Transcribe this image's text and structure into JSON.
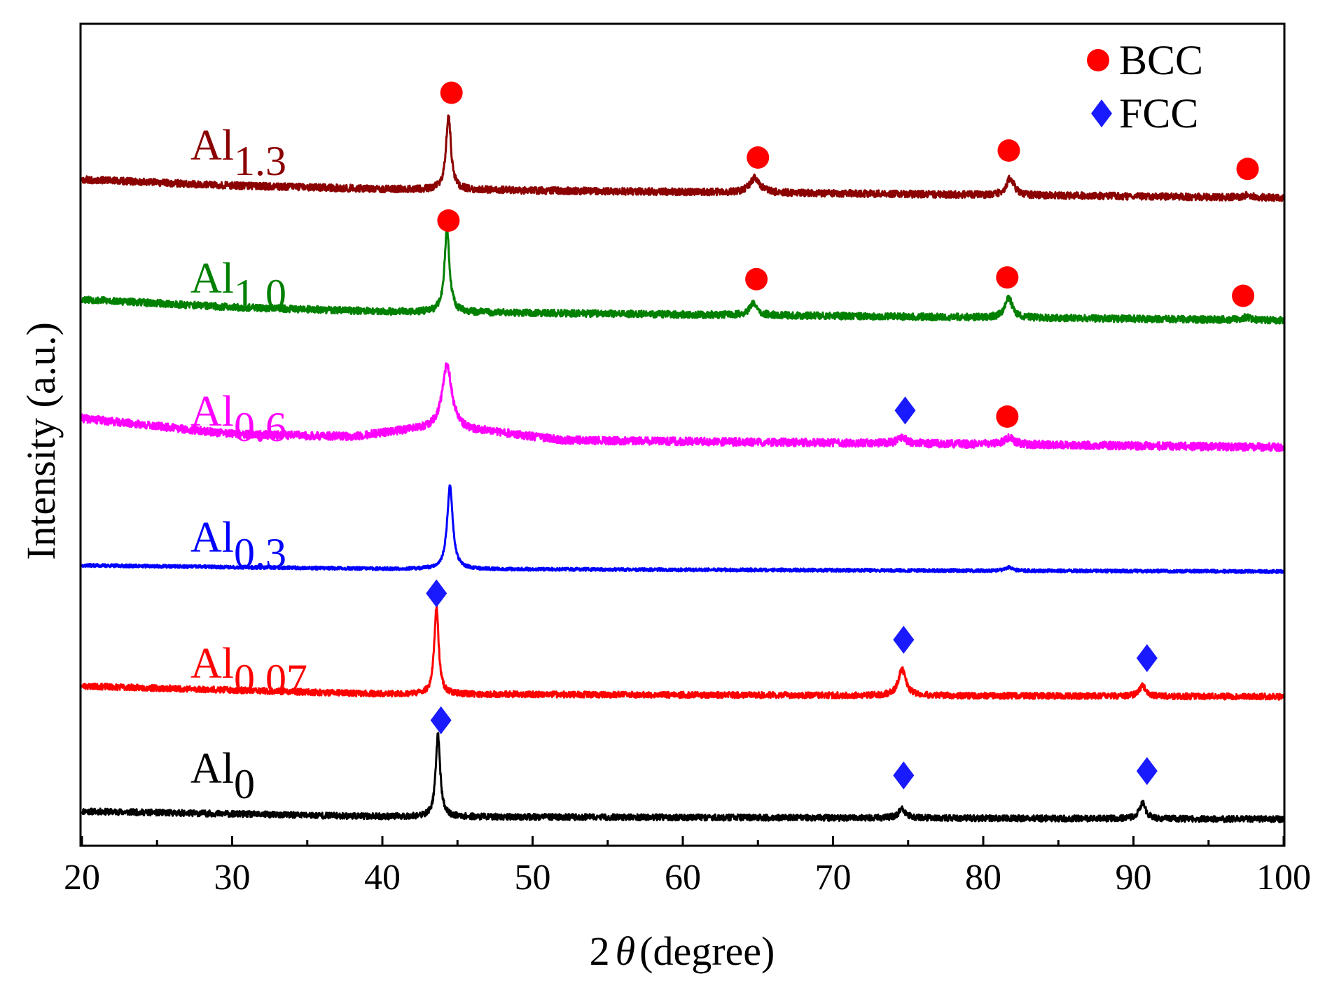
{
  "chart_data": {
    "type": "line",
    "xlabel_prefix": "2",
    "xlabel_symbol": "θ",
    "xlabel_suffix": "(degree)",
    "ylabel": "Intensity (a.u.)",
    "xlim": [
      20,
      100
    ],
    "xticks": [
      20,
      30,
      40,
      50,
      60,
      70,
      80,
      90,
      100
    ],
    "grid": false,
    "legend": {
      "position": "top-right",
      "entries": [
        {
          "label": "BCC",
          "marker": "circle",
          "color": "#ff0000"
        },
        {
          "label": "FCC",
          "marker": "diamond",
          "color": "#1a1aff"
        }
      ]
    },
    "series": [
      {
        "name": "Al0",
        "base": "Al",
        "sub": "0",
        "color": "#000000",
        "baseline": 0,
        "noise": 0.035,
        "noise_seed": 11,
        "bg": [
          [
            20,
            0.09
          ],
          [
            40,
            0.03
          ],
          [
            100,
            0.0
          ]
        ],
        "peaks": [
          {
            "x": 43.7,
            "h": 0.95,
            "w": 0.35
          },
          {
            "x": 74.6,
            "h": 0.1,
            "w": 0.6
          },
          {
            "x": 90.6,
            "h": 0.18,
            "w": 0.5
          }
        ],
        "markers": [
          {
            "x": 43.9,
            "y": 1.13,
            "type": "FCC"
          },
          {
            "x": 74.7,
            "y": 0.5,
            "type": "FCC"
          },
          {
            "x": 90.9,
            "y": 0.55,
            "type": "FCC"
          }
        ]
      },
      {
        "name": "Al0.07",
        "base": "Al",
        "sub": "0.07",
        "color": "#ff0000",
        "baseline": 1.4,
        "noise": 0.035,
        "noise_seed": 23,
        "bg": [
          [
            20,
            0.12
          ],
          [
            40,
            0.03
          ],
          [
            100,
            0.0
          ]
        ],
        "peaks": [
          {
            "x": 43.6,
            "h": 1.0,
            "w": 0.35
          },
          {
            "x": 74.6,
            "h": 0.3,
            "w": 0.6
          },
          {
            "x": 90.6,
            "h": 0.12,
            "w": 0.5
          }
        ],
        "markers": [
          {
            "x": 43.6,
            "y": 1.18,
            "type": "FCC"
          },
          {
            "x": 74.7,
            "y": 0.65,
            "type": "FCC"
          },
          {
            "x": 90.9,
            "y": 0.44,
            "type": "FCC"
          }
        ]
      },
      {
        "name": "Al0.3",
        "base": "Al",
        "sub": "0.3",
        "color": "#0000ff",
        "baseline": 2.83,
        "noise": 0.018,
        "noise_seed": 37,
        "bg": [
          [
            20,
            0.07
          ],
          [
            40,
            0.03
          ],
          [
            100,
            0.0
          ]
        ],
        "peaks": [
          {
            "x": 44.5,
            "h": 0.95,
            "w": 0.45
          },
          {
            "x": 81.7,
            "h": 0.04,
            "w": 0.5
          }
        ],
        "markers": []
      },
      {
        "name": "Al0.6",
        "base": "Al",
        "sub": "0.6",
        "color": "#ff00ff",
        "baseline": 4.25,
        "noise": 0.045,
        "noise_seed": 41,
        "bg": [
          [
            20,
            0.33
          ],
          [
            30,
            0.15
          ],
          [
            38,
            0.12
          ],
          [
            42,
            0.2
          ],
          [
            47,
            0.18
          ],
          [
            52,
            0.08
          ],
          [
            100,
            0.0
          ]
        ],
        "peaks": [
          {
            "x": 44.3,
            "h": 0.75,
            "w": 0.8
          },
          {
            "x": 74.6,
            "h": 0.06,
            "w": 0.8
          },
          {
            "x": 81.7,
            "h": 0.08,
            "w": 0.8
          }
        ],
        "markers": [
          {
            "x": 74.8,
            "y": 0.42,
            "type": "FCC"
          },
          {
            "x": 81.6,
            "y": 0.35,
            "type": "BCC"
          }
        ]
      },
      {
        "name": "Al1.0",
        "base": "Al",
        "sub": "1.0",
        "color": "#008000",
        "baseline": 5.7,
        "noise": 0.04,
        "noise_seed": 53,
        "bg": [
          [
            20,
            0.24
          ],
          [
            30,
            0.15
          ],
          [
            40,
            0.1
          ],
          [
            100,
            0.0
          ]
        ],
        "peaks": [
          {
            "x": 44.3,
            "h": 0.95,
            "w": 0.4
          },
          {
            "x": 64.7,
            "h": 0.14,
            "w": 0.6
          },
          {
            "x": 81.7,
            "h": 0.22,
            "w": 0.6
          },
          {
            "x": 97.5,
            "h": 0.03,
            "w": 0.6
          }
        ],
        "markers": [
          {
            "x": 44.4,
            "y": 1.14,
            "type": "BCC"
          },
          {
            "x": 64.9,
            "y": 0.47,
            "type": "BCC"
          },
          {
            "x": 81.6,
            "y": 0.49,
            "type": "BCC"
          },
          {
            "x": 97.3,
            "y": 0.28,
            "type": "BCC"
          }
        ]
      },
      {
        "name": "Al1.3",
        "base": "Al",
        "sub": "1.3",
        "color": "#8b0000",
        "baseline": 7.1,
        "noise": 0.04,
        "noise_seed": 67,
        "bg": [
          [
            20,
            0.21
          ],
          [
            30,
            0.14
          ],
          [
            40,
            0.1
          ],
          [
            100,
            0.0
          ]
        ],
        "peaks": [
          {
            "x": 44.4,
            "h": 0.85,
            "w": 0.4
          },
          {
            "x": 64.8,
            "h": 0.17,
            "w": 0.8
          },
          {
            "x": 81.8,
            "h": 0.2,
            "w": 0.6
          },
          {
            "x": 97.6,
            "h": 0.03,
            "w": 0.6
          }
        ],
        "markers": [
          {
            "x": 44.6,
            "y": 1.2,
            "type": "BCC"
          },
          {
            "x": 65.0,
            "y": 0.46,
            "type": "BCC"
          },
          {
            "x": 81.7,
            "y": 0.54,
            "type": "BCC"
          },
          {
            "x": 97.6,
            "y": 0.33,
            "type": "BCC"
          }
        ]
      }
    ]
  }
}
